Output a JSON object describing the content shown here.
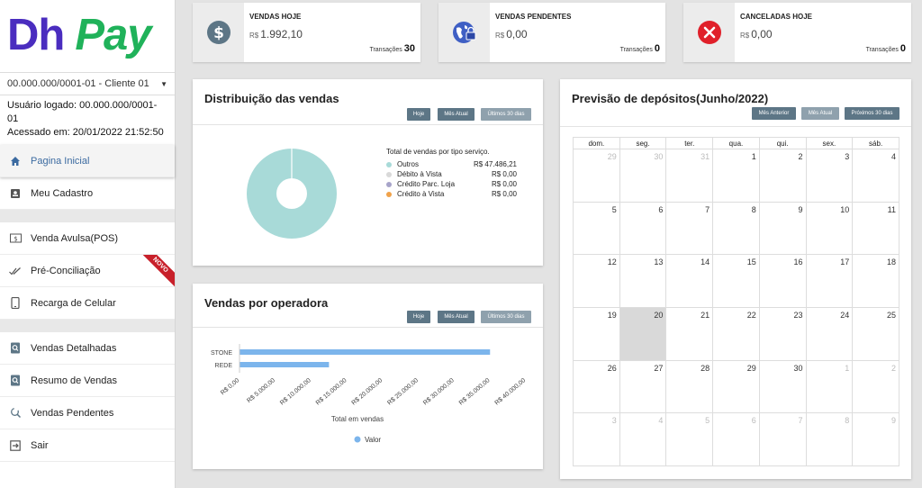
{
  "brand": {
    "part1": "Dh",
    "part2": "Pay"
  },
  "client_select": {
    "value": "00.000.000/0001-01 - Cliente 01"
  },
  "user": {
    "logged": "Usuário logado: 00.000.000/0001-01",
    "accessed": "Acessado em: 20/01/2022 21:52:50"
  },
  "menu": {
    "home": "Pagina Inicial",
    "register": "Meu Cadastro",
    "pos": "Venda Avulsa(POS)",
    "preconc": "Pré-Conciliação",
    "badge_new": "NOVO",
    "recharge": "Recarga de Celular",
    "detailed": "Vendas Detalhadas",
    "summary": "Resumo de Vendas",
    "pending": "Vendas Pendentes",
    "exit": "Sair"
  },
  "stats": [
    {
      "title": "VENDAS HOJE",
      "currency": "R$",
      "amount": "1.992,10",
      "trans_label": "Transações",
      "trans_count": "30",
      "icon": "dollar-circle-icon"
    },
    {
      "title": "VENDAS PENDENTES",
      "currency": "R$",
      "amount": "0,00",
      "trans_label": "Transações",
      "trans_count": "0",
      "icon": "globe-lock-icon"
    },
    {
      "title": "CANCELADAS HOJE",
      "currency": "R$",
      "amount": "0,00",
      "trans_label": "Transações",
      "trans_count": "0",
      "icon": "cancel-circle-icon"
    }
  ],
  "distribution": {
    "title": "Distribuição das vendas",
    "buttons": {
      "today": "Hoje",
      "month": "Mês Atual",
      "last30": "Últimos 30 dias"
    },
    "legend_title": "Total de vendas por tipo serviço.",
    "items": [
      {
        "name": "Outros",
        "value": "R$ 47.486,21",
        "color": "#a8dad8"
      },
      {
        "name": "Débito à Vista",
        "value": "R$ 0,00",
        "color": "#d9d9d9"
      },
      {
        "name": "Crédito Parc. Loja",
        "value": "R$ 0,00",
        "color": "#a7a4c9"
      },
      {
        "name": "Crédito à Vista",
        "value": "R$ 0,00",
        "color": "#f0a24a"
      }
    ]
  },
  "operators": {
    "title": "Vendas por operadora",
    "buttons": {
      "today": "Hoje",
      "month": "Mês Atual",
      "last30": "Últimos 30 dias"
    }
  },
  "deposits": {
    "title": "Previsão de depósitos(Junho/2022)",
    "buttons": {
      "prev": "Mês Anterior",
      "current": "Mês Atual",
      "next": "Próximos 30 dias"
    },
    "weekdays": [
      "dom.",
      "seg.",
      "ter.",
      "qua.",
      "qui.",
      "sex.",
      "sáb."
    ],
    "weeks": [
      [
        {
          "d": "29",
          "o": true
        },
        {
          "d": "30",
          "o": true
        },
        {
          "d": "31",
          "o": true
        },
        {
          "d": "1"
        },
        {
          "d": "2"
        },
        {
          "d": "3"
        },
        {
          "d": "4"
        }
      ],
      [
        {
          "d": "5"
        },
        {
          "d": "6"
        },
        {
          "d": "7"
        },
        {
          "d": "8"
        },
        {
          "d": "9"
        },
        {
          "d": "10"
        },
        {
          "d": "11"
        }
      ],
      [
        {
          "d": "12"
        },
        {
          "d": "13"
        },
        {
          "d": "14"
        },
        {
          "d": "15"
        },
        {
          "d": "16"
        },
        {
          "d": "17"
        },
        {
          "d": "18"
        }
      ],
      [
        {
          "d": "19"
        },
        {
          "d": "20",
          "today": true
        },
        {
          "d": "21"
        },
        {
          "d": "22"
        },
        {
          "d": "23"
        },
        {
          "d": "24"
        },
        {
          "d": "25"
        }
      ],
      [
        {
          "d": "26"
        },
        {
          "d": "27"
        },
        {
          "d": "28"
        },
        {
          "d": "29"
        },
        {
          "d": "30"
        },
        {
          "d": "1",
          "o": true
        },
        {
          "d": "2",
          "o": true
        }
      ],
      [
        {
          "d": "3",
          "o": true
        },
        {
          "d": "4",
          "o": true
        },
        {
          "d": "5",
          "o": true
        },
        {
          "d": "6",
          "o": true
        },
        {
          "d": "7",
          "o": true
        },
        {
          "d": "8",
          "o": true
        },
        {
          "d": "9",
          "o": true
        }
      ]
    ]
  },
  "chart_data": [
    {
      "type": "pie",
      "title": "Distribuição das vendas",
      "labels": [
        "Outros",
        "Débito à Vista",
        "Crédito Parc. Loja",
        "Crédito à Vista"
      ],
      "values": [
        47486.21,
        0,
        0,
        0
      ],
      "colors": [
        "#a8dad8",
        "#d9d9d9",
        "#a7a4c9",
        "#f0a24a"
      ]
    },
    {
      "type": "bar",
      "orientation": "horizontal",
      "title": "Vendas por operadora",
      "categories": [
        "STONE",
        "REDE"
      ],
      "series": [
        {
          "name": "Valor",
          "values": [
            35000,
            12500
          ],
          "color": "#7cb5ec"
        }
      ],
      "xlabel": "Total em vendas",
      "xlim": [
        0,
        40000
      ],
      "xticks": [
        0,
        5000,
        10000,
        15000,
        20000,
        25000,
        30000,
        35000,
        40000
      ],
      "xtick_labels": [
        "R$ 0,00",
        "R$ 5.000,00",
        "R$ 10.000,00",
        "R$ 15.000,00",
        "R$ 20.000,00",
        "R$ 25.000,00",
        "R$ 30.000,00",
        "R$ 35.000,00",
        "R$ 40.000,00"
      ],
      "legend": "bottom"
    }
  ]
}
